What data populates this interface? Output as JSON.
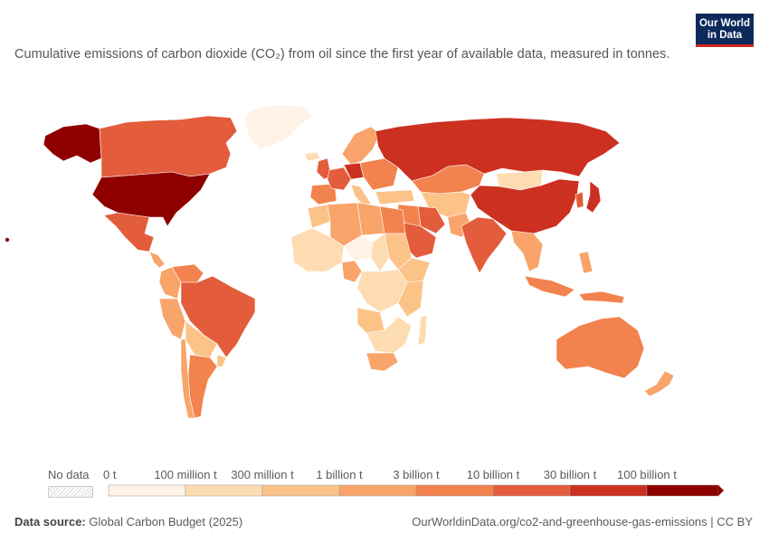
{
  "header": {
    "subtitle": "Cumulative emissions of carbon dioxide (CO₂) from oil since the first year of available data, measured in tonnes.",
    "logo_line1": "Our World",
    "logo_line2": "in Data"
  },
  "legend": {
    "no_data_label": "No data",
    "bins": [
      {
        "label": "0 t",
        "color": "#fff2e6"
      },
      {
        "label": "100 million t",
        "color": "#fddcb1"
      },
      {
        "label": "300 million t",
        "color": "#fcc389"
      },
      {
        "label": "1 billion t",
        "color": "#f9a46a"
      },
      {
        "label": "3 billion t",
        "color": "#f2824e"
      },
      {
        "label": "10 billion t",
        "color": "#e35c3b"
      },
      {
        "label": "30 billion t",
        "color": "#cc3020"
      },
      {
        "label": "100 billion t",
        "color": "#8e0000"
      }
    ]
  },
  "map_data": {
    "type": "choropleth",
    "regions": [
      {
        "name": "United States",
        "level": 7
      },
      {
        "name": "Russia",
        "level": 6
      },
      {
        "name": "China",
        "level": 6
      },
      {
        "name": "Japan",
        "level": 6
      },
      {
        "name": "Germany",
        "level": 6
      },
      {
        "name": "Canada",
        "level": 5
      },
      {
        "name": "Mexico",
        "level": 5
      },
      {
        "name": "Brazil",
        "level": 5
      },
      {
        "name": "India",
        "level": 5
      },
      {
        "name": "Saudi Arabia",
        "level": 5
      },
      {
        "name": "United Kingdom",
        "level": 5
      },
      {
        "name": "France",
        "level": 5
      },
      {
        "name": "Iran",
        "level": 5
      },
      {
        "name": "Australia",
        "level": 4
      },
      {
        "name": "Argentina",
        "level": 4
      },
      {
        "name": "Kazakhstan",
        "level": 4
      },
      {
        "name": "Indonesia",
        "level": 4
      },
      {
        "name": "Venezuela",
        "level": 4
      },
      {
        "name": "Spain",
        "level": 4
      },
      {
        "name": "Egypt",
        "level": 4
      },
      {
        "name": "South Africa",
        "level": 3
      },
      {
        "name": "Algeria",
        "level": 3
      },
      {
        "name": "Libya",
        "level": 3
      },
      {
        "name": "Colombia",
        "level": 3
      },
      {
        "name": "Peru",
        "level": 3
      },
      {
        "name": "Chile",
        "level": 3
      },
      {
        "name": "Nigeria",
        "level": 3
      },
      {
        "name": "Mongolia",
        "level": 1
      },
      {
        "name": "Greenland",
        "level": 0
      },
      {
        "name": "Sudan",
        "level": 2
      },
      {
        "name": "DR Congo",
        "level": 1
      },
      {
        "name": "Mali",
        "level": 0
      },
      {
        "name": "Niger",
        "level": 0
      },
      {
        "name": "Chad",
        "level": 1
      },
      {
        "name": "Angola",
        "level": 2
      },
      {
        "name": "Ethiopia",
        "level": 2
      },
      {
        "name": "New Zealand",
        "level": 3
      }
    ]
  },
  "footer": {
    "source_label": "Data source:",
    "source": "Global Carbon Budget (2025)",
    "url": "OurWorldinData.org/co2-and-greenhouse-gas-emissions | CC BY"
  }
}
